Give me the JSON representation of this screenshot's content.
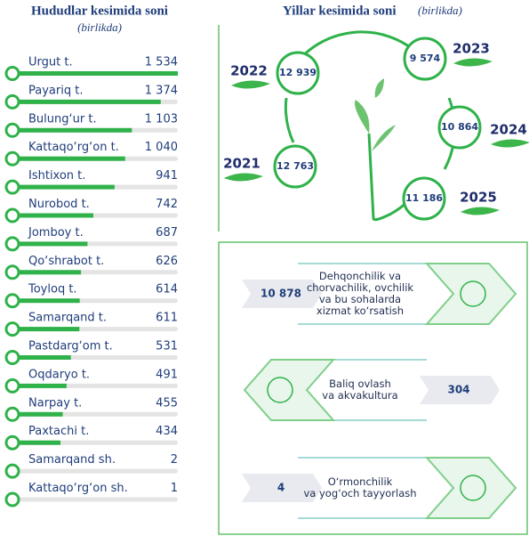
{
  "regions": {
    "title": "Hududlar kesimida soni",
    "subtitle": "(birlikda)",
    "color": "#2fb24a",
    "categories": [
      "Urgut t.",
      "Payariq t.",
      "Bulung‘ur t.",
      "Kattaqo‘rg‘on t.",
      "Ishtixon t.",
      "Nurobod t.",
      "Jomboy t.",
      "Qo‘shrabot t.",
      "Toyloq t.",
      "Samarqand t.",
      "Pastdarg‘om t.",
      "Oqdaryo t.",
      "Narpay t.",
      "Paxtachi t.",
      "Samarqand sh.",
      "Kattaqo‘rg‘on sh."
    ],
    "values": [
      1534,
      1374,
      1103,
      1040,
      941,
      742,
      687,
      626,
      614,
      611,
      531,
      491,
      455,
      434,
      2,
      1
    ],
    "value_labels": [
      "1 534",
      "1 374",
      "1 103",
      "1 040",
      "941",
      "742",
      "687",
      "626",
      "614",
      "611",
      "531",
      "491",
      "455",
      "434",
      "2",
      "1"
    ]
  },
  "years": {
    "title": "Yillar kesimida soni",
    "subtitle": "(birlikda)",
    "categories": [
      "2021",
      "2022",
      "2023",
      "2024",
      "2025"
    ],
    "values": [
      12763,
      12939,
      9574,
      10864,
      11186
    ],
    "value_labels": [
      "12 763",
      "12 939",
      "9 574",
      "10 864",
      "11 186"
    ]
  },
  "activities": {
    "items": [
      {
        "lines": [
          "Dehqonchilik va",
          "chorvachilik, ovchilik",
          "va bu sohalarda",
          "xizmat ko‘rsatish"
        ],
        "value": 10878,
        "value_label": "10 878"
      },
      {
        "lines": [
          "Baliq ovlash",
          "va akvakultura"
        ],
        "value": 304,
        "value_label": "304"
      },
      {
        "lines": [
          "O‘rmonchilik",
          "va yog‘och tayyorlash"
        ],
        "value": 4,
        "value_label": "4"
      }
    ]
  }
}
